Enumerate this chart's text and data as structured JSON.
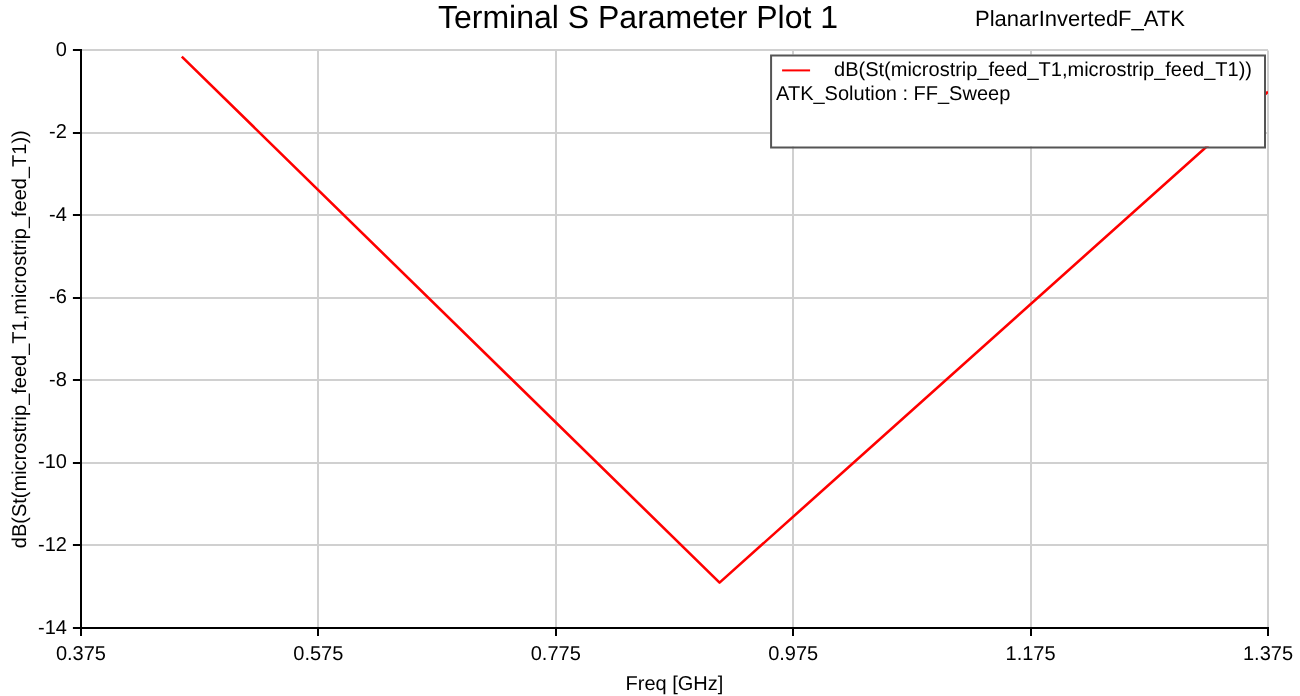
{
  "chart_data": {
    "type": "line",
    "title": "Terminal S Parameter Plot 1",
    "subtitle": "PlanarInvertedF_ATK",
    "xlabel": "Freq [GHz]",
    "ylabel": "dB(St(microstrip_feed_T1,microstrip_feed_T1))",
    "annotations": [
      "ATK_Solution : FF_Sweep"
    ],
    "series": [
      {
        "name": "dB(St(microstrip_feed_T1,microstrip_feed_T1))",
        "color": "#ff0000",
        "x": [
          0.46,
          0.913,
          1.375
        ],
        "values": [
          -0.15,
          -12.9,
          -1.0
        ]
      }
    ],
    "xlim": [
      0.375,
      1.375
    ],
    "xticks": [
      {
        "value": 0.375,
        "label": "0.375"
      },
      {
        "value": 0.575,
        "label": "0.575"
      },
      {
        "value": 0.775,
        "label": "0.775"
      },
      {
        "value": 0.975,
        "label": "0.975"
      },
      {
        "value": 1.175,
        "label": "1.175"
      },
      {
        "value": 1.375,
        "label": "1.375"
      }
    ],
    "ylim": [
      -14,
      0
    ],
    "yticks": [
      -14,
      -12,
      -10,
      -8,
      -6,
      -4,
      -2,
      0
    ],
    "grid": true,
    "legend": "top right",
    "marker": "none",
    "line_style": "solid"
  }
}
